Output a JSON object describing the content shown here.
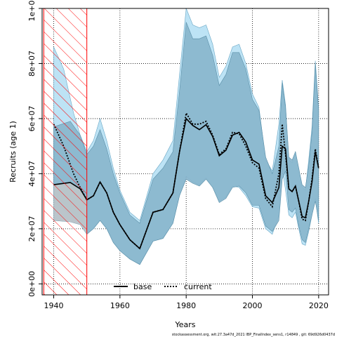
{
  "chart_data": {
    "type": "line",
    "xlabel": "Years",
    "ylabel": "Recruits (age 1)",
    "xlim": [
      1936.5,
      2023
    ],
    "ylim": [
      -4000000,
      100000000
    ],
    "x_ticks": [
      1940,
      1960,
      1980,
      2000,
      2020
    ],
    "x_tick_labels": [
      "1940",
      "1960",
      "1980",
      "2000",
      "2020"
    ],
    "y_ticks": [
      0,
      20000000,
      40000000,
      60000000,
      80000000,
      100000000
    ],
    "y_tick_labels": [
      "0e+00",
      "2e+07",
      "4e+07",
      "6e+07",
      "8e+07",
      "1e+08"
    ],
    "grid": true,
    "legend_position": "bottom-center",
    "hatched_region": {
      "x_from": 1937,
      "x_to": 1950
    },
    "footer": "stockassessment.org, wit:27.3a47d_2021 IBP_FinalIndex_sens1, r14849 , git: 69d926d0437d",
    "colors": {
      "band_base": "#87b5cc",
      "band_current": "#bde3f5",
      "base_lower_fill": "#c8c8c8",
      "line": "#000000",
      "hatch": "#ff0000"
    },
    "series": [
      {
        "name": "base",
        "style": "solid",
        "x": [
          1940,
          1945,
          1948,
          1950,
          1952,
          1954,
          1956,
          1958,
          1960,
          1963,
          1966,
          1970,
          1973,
          1976,
          1978,
          1980,
          1982,
          1984,
          1986,
          1988,
          1990,
          1992,
          1994,
          1996,
          1998,
          2000,
          2002,
          2004,
          2006,
          2008,
          2009,
          2010,
          2011,
          2012,
          2013,
          2014,
          2015,
          2016,
          2017,
          2018,
          2019,
          2020
        ],
        "y": [
          36000000,
          36800000,
          34500000,
          30500000,
          32000000,
          37000000,
          33000000,
          26000000,
          21500000,
          16000000,
          12800000,
          26000000,
          27000000,
          33000000,
          48000000,
          60000000,
          57500000,
          56000000,
          57800000,
          53500000,
          46500000,
          48500000,
          54000000,
          55000000,
          51500000,
          45000000,
          43500000,
          32000000,
          29500000,
          35000000,
          50000000,
          49000000,
          34500000,
          33500000,
          35500000,
          30000000,
          24500000,
          24000000,
          30000000,
          37000000,
          48000000,
          42000000
        ],
        "band_lower": [
          23000000,
          22500000,
          21500000,
          18000000,
          20000000,
          23000000,
          20000000,
          15000000,
          12000000,
          9000000,
          7000000,
          15500000,
          16500000,
          22000000,
          32000000,
          38000000,
          36500000,
          35500000,
          38000000,
          35000000,
          29500000,
          31000000,
          35000000,
          35500000,
          33000000,
          28500000,
          28500000,
          21000000,
          19000000,
          23000000,
          38000000,
          41000000,
          27000000,
          26000000,
          27500000,
          21000000,
          16000000,
          15000000,
          20000000,
          25000000,
          30000000,
          23000000
        ],
        "band_upper": [
          57000000,
          59000000,
          54000000,
          47000000,
          50000000,
          56000000,
          49000000,
          40000000,
          33000000,
          25000000,
          22000000,
          38000000,
          42000000,
          48000000,
          70000000,
          95000000,
          89000000,
          89000000,
          90000000,
          83000000,
          72000000,
          76000000,
          84000000,
          84000000,
          78000000,
          67000000,
          63000000,
          46000000,
          40000000,
          50000000,
          73000000,
          64000000,
          46000000,
          45000000,
          48000000,
          42000000,
          36000000,
          35000000,
          43000000,
          55000000,
          80000000,
          63000000
        ]
      },
      {
        "name": "current",
        "style": "dotted",
        "x": [
          1940,
          1943,
          1946,
          1948,
          1950,
          1952,
          1954,
          1956,
          1958,
          1960,
          1963,
          1966,
          1970,
          1973,
          1976,
          1978,
          1980,
          1982,
          1984,
          1986,
          1988,
          1990,
          1992,
          1994,
          1996,
          1998,
          2000,
          2002,
          2004,
          2006,
          2008,
          2009,
          2010,
          2011,
          2012,
          2013,
          2014,
          2015,
          2016,
          2017,
          2018,
          2019,
          2020
        ],
        "y": [
          58000000,
          50000000,
          40000000,
          35000000,
          30500000,
          32000000,
          37000000,
          33000000,
          26000000,
          21500000,
          16000000,
          12800000,
          26000000,
          27000000,
          33000000,
          48000000,
          62000000,
          58000000,
          58000000,
          59000000,
          54000000,
          47000000,
          49000000,
          55000000,
          54500000,
          50000000,
          44000000,
          42000000,
          31000000,
          28000000,
          40000000,
          58000000,
          47000000,
          34500000,
          33500000,
          35500000,
          30000000,
          23500000,
          23000000,
          30000000,
          38000000,
          49000000,
          42000000
        ],
        "band_lower": [
          30000000,
          27000000,
          24000000,
          22000000,
          18500000,
          20000000,
          23000000,
          20000000,
          15000000,
          12000000,
          9000000,
          7000000,
          15500000,
          16500000,
          22000000,
          32000000,
          39000000,
          37000000,
          36000000,
          38500000,
          35000000,
          30000000,
          31500000,
          35500000,
          35000000,
          32000000,
          28000000,
          27500000,
          20000000,
          18000000,
          25000000,
          42000000,
          34000000,
          25000000,
          24000000,
          26000000,
          20000000,
          14500000,
          14000000,
          19000000,
          25000000,
          31000000,
          22000000
        ],
        "band_upper": [
          86000000,
          78000000,
          62000000,
          54000000,
          48000000,
          52000000,
          60000000,
          52000000,
          42000000,
          34000000,
          26000000,
          23000000,
          40000000,
          45000000,
          52000000,
          76000000,
          100000000,
          94000000,
          93000000,
          94000000,
          87000000,
          75000000,
          79000000,
          86000000,
          87000000,
          80000000,
          69000000,
          64000000,
          45000000,
          41000000,
          58000000,
          74000000,
          65000000,
          45000000,
          44000000,
          48000000,
          42000000,
          35000000,
          34000000,
          45000000,
          57000000,
          81000000,
          64000000
        ]
      }
    ]
  }
}
